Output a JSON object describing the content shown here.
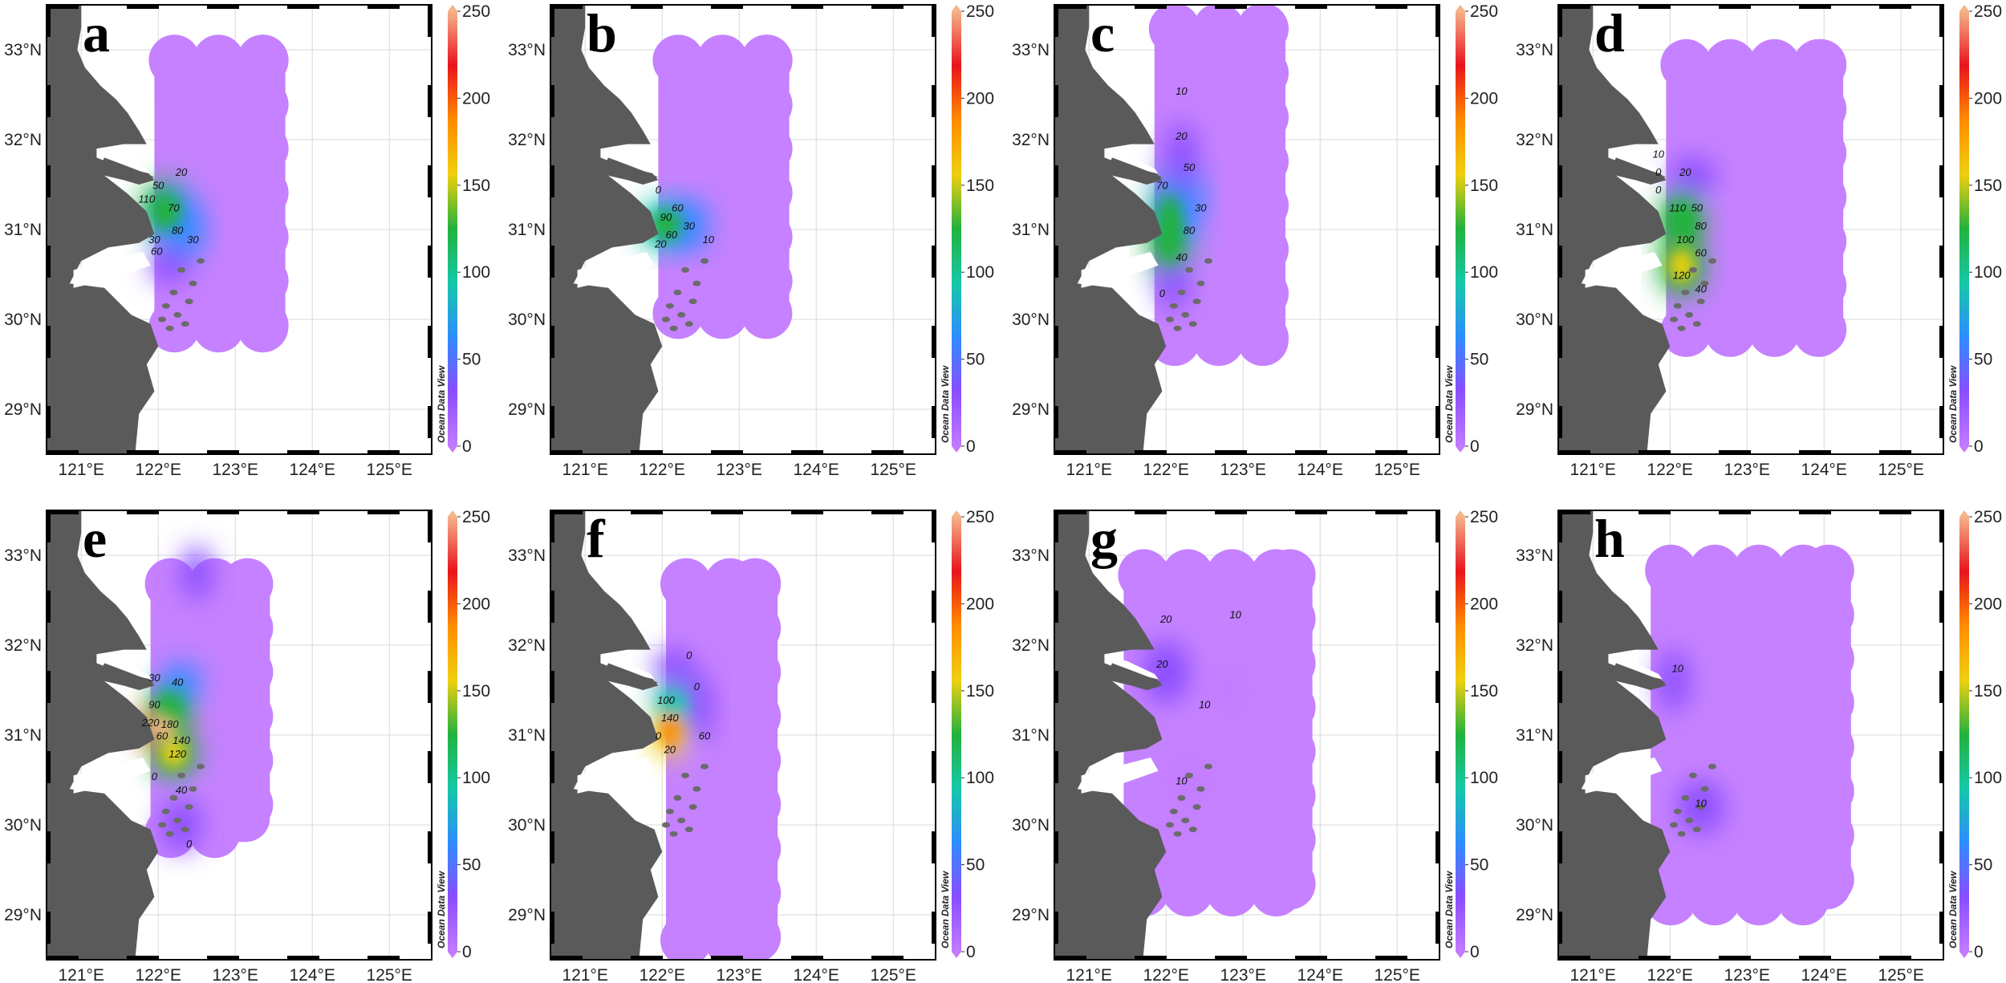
{
  "figure": {
    "colorbar": {
      "ticks": [
        "0",
        "50",
        "100",
        "150",
        "200",
        "250"
      ],
      "credit": "Ocean Data View",
      "colors": [
        "#c27bff",
        "#8a4dff",
        "#2f8cff",
        "#15c8a8",
        "#23b23c",
        "#f0cf10",
        "#ff8c00",
        "#e8141c",
        "#f5b38a"
      ]
    },
    "axes": {
      "lon_ticks": [
        "121°E",
        "122°E",
        "123°E",
        "124°E",
        "125°E"
      ],
      "lat_ticks": [
        "33°N",
        "32°N",
        "31°N",
        "30°N",
        "29°N"
      ]
    },
    "colors": {
      "land": "#5a5a5a",
      "grid": "#d8d8d8",
      "frame": "#000000",
      "base_field": "#c27bff"
    }
  },
  "panels": [
    {
      "id": "a",
      "label": "a",
      "contours": [
        {
          "text": "20",
          "lon": 122.3,
          "lat": 31.6
        },
        {
          "text": "50",
          "lon": 122.0,
          "lat": 31.45
        },
        {
          "text": "70",
          "lon": 122.2,
          "lat": 31.2
        },
        {
          "text": "110",
          "lon": 121.85,
          "lat": 31.3
        },
        {
          "text": "80",
          "lon": 122.25,
          "lat": 30.95
        },
        {
          "text": "30",
          "lon": 122.45,
          "lat": 30.85
        },
        {
          "text": "30",
          "lon": 121.95,
          "lat": 30.85
        },
        {
          "text": "60",
          "lon": 121.98,
          "lat": 30.72
        }
      ]
    },
    {
      "id": "b",
      "label": "b",
      "contours": [
        {
          "text": "0",
          "lon": 121.95,
          "lat": 31.4
        },
        {
          "text": "90",
          "lon": 122.05,
          "lat": 31.1
        },
        {
          "text": "30",
          "lon": 122.35,
          "lat": 31.0
        },
        {
          "text": "60",
          "lon": 122.2,
          "lat": 31.2
        },
        {
          "text": "60",
          "lon": 122.12,
          "lat": 30.9
        },
        {
          "text": "20",
          "lon": 121.98,
          "lat": 30.8
        },
        {
          "text": "10",
          "lon": 122.6,
          "lat": 30.85
        }
      ]
    },
    {
      "id": "c",
      "label": "c",
      "contours": [
        {
          "text": "10",
          "lon": 122.2,
          "lat": 32.5
        },
        {
          "text": "20",
          "lon": 122.2,
          "lat": 32.0
        },
        {
          "text": "50",
          "lon": 122.3,
          "lat": 31.65
        },
        {
          "text": "70",
          "lon": 121.95,
          "lat": 31.45
        },
        {
          "text": "30",
          "lon": 122.45,
          "lat": 31.2
        },
        {
          "text": "80",
          "lon": 122.3,
          "lat": 30.95
        },
        {
          "text": "40",
          "lon": 122.2,
          "lat": 30.65
        },
        {
          "text": "0",
          "lon": 121.95,
          "lat": 30.25
        }
      ]
    },
    {
      "id": "d",
      "label": "d",
      "contours": [
        {
          "text": "10",
          "lon": 121.85,
          "lat": 31.8
        },
        {
          "text": "20",
          "lon": 122.2,
          "lat": 31.6
        },
        {
          "text": "0",
          "lon": 121.85,
          "lat": 31.6
        },
        {
          "text": "0",
          "lon": 121.85,
          "lat": 31.4
        },
        {
          "text": "110",
          "lon": 122.1,
          "lat": 31.2
        },
        {
          "text": "50",
          "lon": 122.35,
          "lat": 31.2
        },
        {
          "text": "80",
          "lon": 122.4,
          "lat": 31.0
        },
        {
          "text": "100",
          "lon": 122.2,
          "lat": 30.85
        },
        {
          "text": "60",
          "lon": 122.4,
          "lat": 30.7
        },
        {
          "text": "120",
          "lon": 122.15,
          "lat": 30.45
        },
        {
          "text": "40",
          "lon": 122.4,
          "lat": 30.3
        }
      ]
    },
    {
      "id": "e",
      "label": "e",
      "contours": [
        {
          "text": "30",
          "lon": 121.95,
          "lat": 31.6
        },
        {
          "text": "40",
          "lon": 122.25,
          "lat": 31.55
        },
        {
          "text": "90",
          "lon": 121.95,
          "lat": 31.3
        },
        {
          "text": "220",
          "lon": 121.9,
          "lat": 31.1
        },
        {
          "text": "180",
          "lon": 122.15,
          "lat": 31.08
        },
        {
          "text": "60",
          "lon": 122.05,
          "lat": 30.95
        },
        {
          "text": "140",
          "lon": 122.3,
          "lat": 30.9
        },
        {
          "text": "120",
          "lon": 122.25,
          "lat": 30.75
        },
        {
          "text": "0",
          "lon": 121.95,
          "lat": 30.5
        },
        {
          "text": "40",
          "lon": 122.3,
          "lat": 30.35
        },
        {
          "text": "0",
          "lon": 122.4,
          "lat": 29.75
        }
      ]
    },
    {
      "id": "f",
      "label": "f",
      "contours": [
        {
          "text": "0",
          "lon": 122.35,
          "lat": 31.85
        },
        {
          "text": "0",
          "lon": 122.45,
          "lat": 31.5
        },
        {
          "text": "100",
          "lon": 122.05,
          "lat": 31.35
        },
        {
          "text": "140",
          "lon": 122.1,
          "lat": 31.15
        },
        {
          "text": "60",
          "lon": 122.55,
          "lat": 30.95
        },
        {
          "text": "0",
          "lon": 121.95,
          "lat": 30.95
        },
        {
          "text": "20",
          "lon": 122.1,
          "lat": 30.8
        }
      ]
    },
    {
      "id": "g",
      "label": "g",
      "contours": [
        {
          "text": "20",
          "lon": 122.0,
          "lat": 32.25
        },
        {
          "text": "10",
          "lon": 122.9,
          "lat": 32.3
        },
        {
          "text": "20",
          "lon": 121.95,
          "lat": 31.75
        },
        {
          "text": "10",
          "lon": 122.5,
          "lat": 31.3
        },
        {
          "text": "10",
          "lon": 122.2,
          "lat": 30.45
        }
      ]
    },
    {
      "id": "h",
      "label": "h",
      "contours": [
        {
          "text": "10",
          "lon": 122.1,
          "lat": 31.7
        },
        {
          "text": "10",
          "lon": 122.4,
          "lat": 30.2
        }
      ]
    }
  ]
}
